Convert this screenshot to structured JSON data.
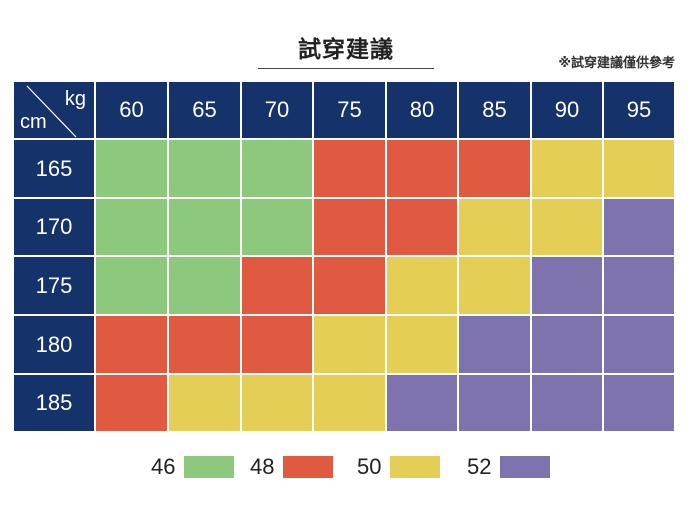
{
  "title": "試穿建議",
  "note": "※試穿建議僅供參考",
  "corner": {
    "col_unit": "kg",
    "row_unit": "cm"
  },
  "colors": {
    "header": "#15326b",
    "46": "#8cc97c",
    "48": "#e05a42",
    "50": "#e5ce55",
    "52": "#7e73ad"
  },
  "chart_data": {
    "type": "heatmap",
    "x": [
      "60",
      "65",
      "70",
      "75",
      "80",
      "85",
      "90",
      "95"
    ],
    "y": [
      "165",
      "170",
      "175",
      "180",
      "185"
    ],
    "xlabel": "kg",
    "ylabel": "cm",
    "values": [
      [
        46,
        46,
        46,
        48,
        48,
        48,
        50,
        50
      ],
      [
        46,
        46,
        46,
        48,
        48,
        50,
        50,
        52
      ],
      [
        46,
        46,
        48,
        48,
        50,
        50,
        52,
        52
      ],
      [
        48,
        48,
        48,
        50,
        50,
        52,
        52,
        52
      ],
      [
        48,
        50,
        50,
        50,
        52,
        52,
        52,
        52
      ]
    ],
    "legend": [
      "46",
      "48",
      "50",
      "52"
    ],
    "legend_placement": "bottom"
  }
}
